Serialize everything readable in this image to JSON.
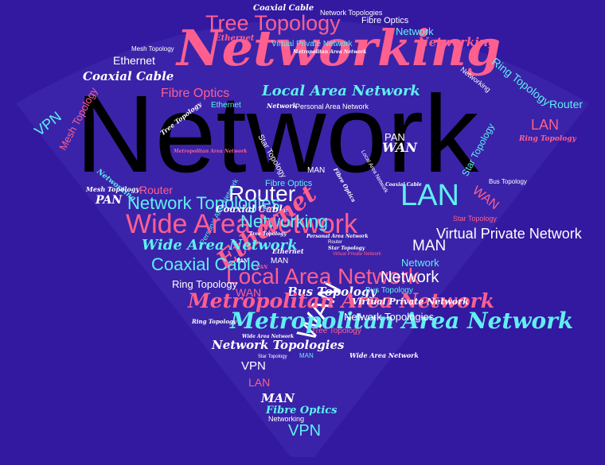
{
  "colors": {
    "background": "#3318a0",
    "shape": "#3a23a8",
    "pink": "#ff5f8f",
    "cyan": "#5ff0f2",
    "white": "#ffffff",
    "black": "#000000"
  },
  "words": [
    "Network",
    "Networking",
    "Tree Topology",
    "Coaxial Cable",
    "Network Topologies",
    "Fibre Optics",
    "Network",
    "Networking",
    "Ethernet",
    "Virtual Private Network",
    "Mesh Topology",
    "Ethernet",
    "Coaxial Cable",
    "Metropolitan Area Network",
    "Ring Topology",
    "Networking",
    "VPN",
    "Mesh Topology",
    "Fibre Optics",
    "Local Area Network",
    "Router",
    "Ethernet",
    "Network",
    "Personal Area Network",
    "LAN",
    "Tree Topology",
    "PAN",
    "Ring Topology",
    "WAN",
    "Star Topology",
    "Metropolitan Area Network",
    "MAN",
    "Networking",
    "Local Area Network",
    "Fibre Optics",
    "Coaxial Cable",
    "Bus Topology",
    "Mesh Topology",
    "Fibre Optics",
    "LAN",
    "Star Topology",
    "WAN",
    "Router",
    "Router",
    "PAN",
    "Network Topologies",
    "Personal Area Network",
    "Coaxial Cable",
    "VPN",
    "VPN",
    "Star Topology",
    "Wide Area Network",
    "Networking",
    "Ethernet",
    "WAN",
    "Virtual Private Network",
    "Tree Topology",
    "Personal Area Network",
    "Router",
    "MAN",
    "Wide Area Network",
    "Star Topology",
    "Virtual Private Network",
    "Ethernet",
    "MAN",
    "Network",
    "Coaxial Cable",
    "PAN",
    "PAN",
    "Local Area Network",
    "Network",
    "Ring Topology",
    "WAN",
    "Bus Topology",
    "Bus Topology",
    "Metropolitan Area Network",
    "Virtual Private Network",
    "Metropolitan Area Network",
    "Network Topologies",
    "Ring Topology",
    "Tree Topology",
    "Wide Area Network",
    "Network Topologies",
    "Star Topology",
    "MAN",
    "Wide Area Network",
    "VPN",
    "LAN",
    "MAN",
    "Fibre Optics",
    "Networking",
    "VPN"
  ]
}
